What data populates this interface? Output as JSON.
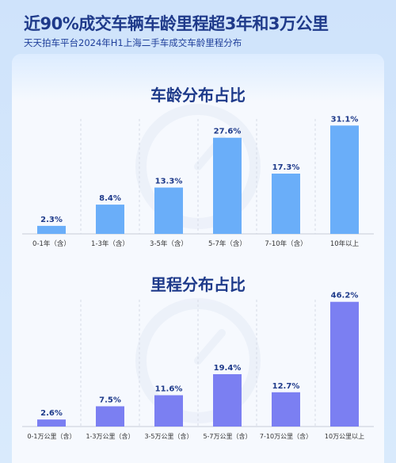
{
  "header": {
    "title": "近90%成交车辆车龄里程超3年和3万公里",
    "subtitle": "天天拍车平台2024年H1上海二手车成交车龄里程分布"
  },
  "colors": {
    "age_bar": "#6aaef9",
    "mileage_bar": "#7b7ff2",
    "title": "#1e3a8a"
  },
  "chart_data": [
    {
      "type": "bar",
      "title": "车龄分布占比",
      "categories": [
        "0-1年（含）",
        "1-3年（含）",
        "3-5年（含）",
        "5-7年（含）",
        "7-10年（含）",
        "10年以上"
      ],
      "values": [
        2.3,
        8.4,
        13.3,
        27.6,
        17.3,
        31.1
      ],
      "labels": [
        "2.3%",
        "8.4%",
        "13.3%",
        "27.6%",
        "17.3%",
        "31.1%"
      ],
      "unit": "%",
      "ylim": [
        0,
        33
      ],
      "grid": false
    },
    {
      "type": "bar",
      "title": "里程分布占比",
      "categories": [
        "0-1万公里（含）",
        "1-3万公里（含）",
        "3-5万公里（含）",
        "5-7万公里（含）",
        "7-10万公里（含）",
        "10万公里以上"
      ],
      "values": [
        2.6,
        7.5,
        11.6,
        19.4,
        12.7,
        46.2
      ],
      "labels": [
        "2.6%",
        "7.5%",
        "11.6%",
        "19.4%",
        "12.7%",
        "46.2%"
      ],
      "unit": "%",
      "ylim": [
        0,
        47
      ],
      "grid": false
    }
  ]
}
